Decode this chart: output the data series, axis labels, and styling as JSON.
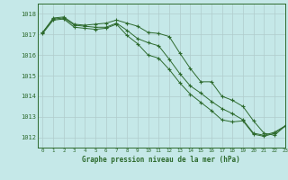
{
  "title": "Graphe pression niveau de la mer (hPa)",
  "background_color": "#c5e8e8",
  "grid_color": "#b0cccc",
  "line_color": "#2d6a2d",
  "spine_color": "#2d6a2d",
  "xlim": [
    -0.5,
    23
  ],
  "ylim": [
    1011.5,
    1018.5
  ],
  "yticks": [
    1012,
    1013,
    1014,
    1015,
    1016,
    1017,
    1018
  ],
  "xticks": [
    0,
    1,
    2,
    3,
    4,
    5,
    6,
    7,
    8,
    9,
    10,
    11,
    12,
    13,
    14,
    15,
    16,
    17,
    18,
    19,
    20,
    21,
    22,
    23
  ],
  "series": [
    [
      1017.1,
      1017.8,
      1017.85,
      1017.5,
      1017.45,
      1017.5,
      1017.55,
      1017.7,
      1017.55,
      1017.4,
      1017.1,
      1017.05,
      1016.9,
      1016.1,
      1015.35,
      1014.7,
      1014.7,
      1014.0,
      1013.8,
      1013.5,
      1012.8,
      1012.2,
      1012.1,
      1012.55
    ],
    [
      1017.1,
      1017.75,
      1017.8,
      1017.45,
      1017.4,
      1017.35,
      1017.35,
      1017.55,
      1017.2,
      1016.8,
      1016.6,
      1016.45,
      1015.8,
      1015.1,
      1014.5,
      1014.15,
      1013.75,
      1013.4,
      1013.15,
      1012.85,
      1012.2,
      1012.1,
      1012.25,
      1012.55
    ],
    [
      1017.05,
      1017.7,
      1017.75,
      1017.35,
      1017.3,
      1017.25,
      1017.3,
      1017.5,
      1016.95,
      1016.55,
      1016.0,
      1015.85,
      1015.3,
      1014.65,
      1014.1,
      1013.7,
      1013.3,
      1012.85,
      1012.75,
      1012.8,
      1012.15,
      1012.05,
      1012.2,
      1012.55
    ]
  ]
}
